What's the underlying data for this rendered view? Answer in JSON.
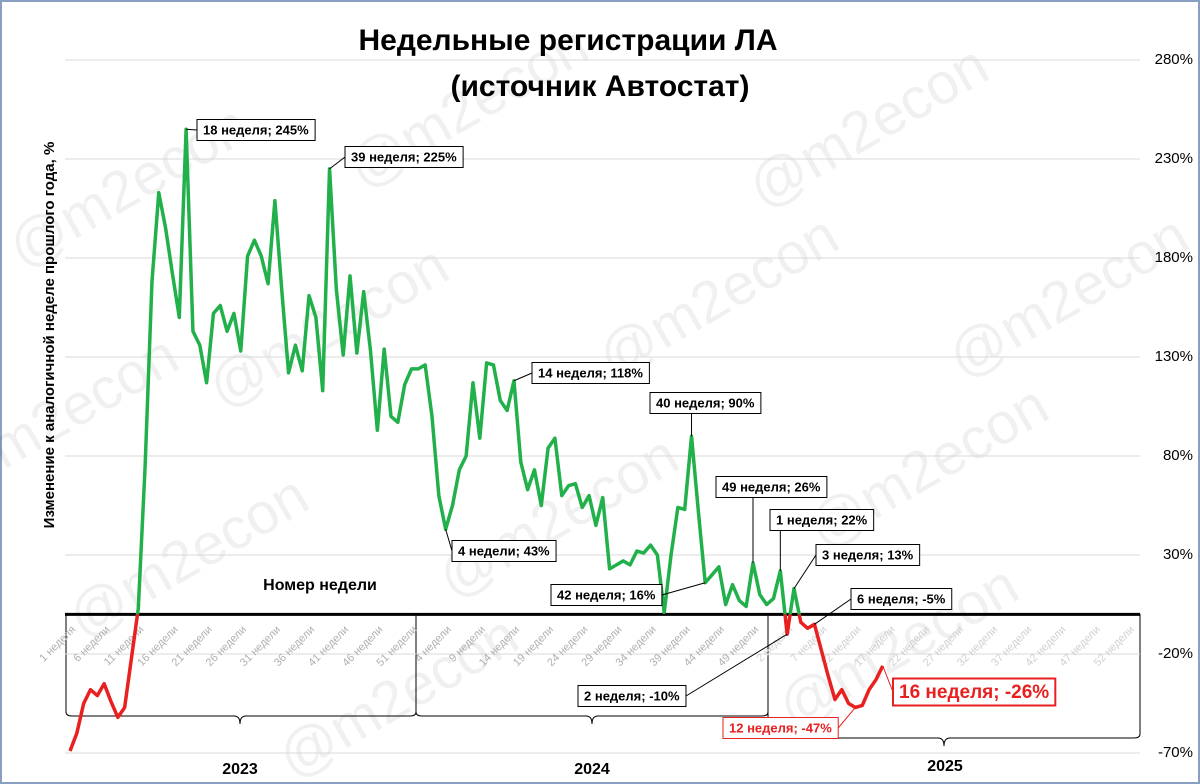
{
  "chart_data": {
    "type": "line",
    "title": [
      "Недельные регистрации ЛА",
      "(источник Автостат)"
    ],
    "y_label": "Изменение к аналогичной неделе прошлого года, %",
    "x_label": "Номер недели",
    "watermark": "@m2econ",
    "year_labels": [
      "2023",
      "2024",
      "2025"
    ],
    "color": "#22b04b",
    "negative_color": "#e8201f",
    "grid": true,
    "ylim": [
      -70,
      280
    ],
    "yticks": [
      {
        "value": -70,
        "label": "-70%"
      },
      {
        "value": -20,
        "label": "-20%"
      },
      {
        "value": 30,
        "label": "30%"
      },
      {
        "value": 80,
        "label": "80%"
      },
      {
        "value": 130,
        "label": "130%"
      },
      {
        "value": 180,
        "label": "180%"
      },
      {
        "value": 230,
        "label": "230%"
      },
      {
        "value": 280,
        "label": "280%"
      }
    ],
    "categories": [
      "1 неделя",
      null,
      null,
      null,
      null,
      "6 недели",
      null,
      null,
      null,
      null,
      "11 недели",
      null,
      null,
      null,
      null,
      "16 недели",
      null,
      null,
      null,
      null,
      "21 недели",
      null,
      null,
      null,
      null,
      "26 недели",
      null,
      null,
      null,
      null,
      "31 недели",
      null,
      null,
      null,
      null,
      "36 недели",
      null,
      null,
      null,
      null,
      "41 недели",
      null,
      null,
      null,
      null,
      "46 недели",
      null,
      null,
      null,
      null,
      "51 недели",
      null,
      null,
      null,
      null,
      "4 недели",
      null,
      null,
      null,
      null,
      "9 недели",
      null,
      null,
      null,
      null,
      "14 недели",
      null,
      null,
      null,
      null,
      "19 недели",
      null,
      null,
      null,
      null,
      "24 недели",
      null,
      null,
      null,
      null,
      "29 недели",
      null,
      null,
      null,
      null,
      "34 недели",
      null,
      null,
      null,
      null,
      "39 недели",
      null,
      null,
      null,
      null,
      "44 недели",
      null,
      null,
      null,
      null,
      "49 недели",
      null,
      null,
      null,
      null,
      "2 недели",
      null,
      null,
      null,
      null,
      "7 недели",
      null,
      null,
      null,
      null,
      "12 недели",
      null,
      null,
      null,
      null,
      "17 недели",
      null,
      null,
      null,
      null,
      "22 недели",
      null,
      null,
      null,
      null,
      "27 недели",
      null,
      null,
      null,
      null,
      "32 недели",
      null,
      null,
      null,
      null,
      "37 недели",
      null,
      null,
      null,
      null,
      "42 недели",
      null,
      null,
      null,
      null,
      "47 недели",
      null,
      null,
      null,
      null,
      "52 недели"
    ],
    "values": [
      -69,
      -60,
      -45,
      -38,
      -41,
      -35,
      -44,
      -52,
      -47,
      -22,
      3,
      75,
      168,
      213,
      195,
      172,
      150,
      245,
      143,
      136,
      117,
      152,
      156,
      143,
      152,
      133,
      181,
      189,
      181,
      167,
      209,
      164,
      122,
      136,
      123,
      161,
      150,
      113,
      225,
      164,
      131,
      171,
      132,
      163,
      133,
      93,
      134,
      100,
      97,
      116,
      124,
      124,
      126,
      100,
      60,
      43,
      55,
      73,
      80,
      117,
      89,
      127,
      126,
      108,
      103,
      118,
      77,
      63,
      73,
      55,
      84,
      89,
      60,
      65,
      66,
      54,
      60,
      45,
      59,
      23,
      25,
      27,
      25,
      32,
      31,
      35,
      30,
      1,
      30,
      54,
      53,
      90,
      52,
      16,
      20,
      24,
      5,
      15,
      7,
      4,
      26,
      10,
      5,
      8,
      22,
      -10,
      13,
      -4,
      -7,
      -5,
      -18,
      -31,
      -43,
      -38,
      -45,
      -47,
      -46,
      -38,
      -33,
      -26,
      null,
      null,
      null,
      null,
      null,
      null,
      null,
      null,
      null,
      null,
      null,
      null,
      null,
      null,
      null,
      null,
      null,
      null,
      null,
      null,
      null,
      null,
      null,
      null,
      null,
      null,
      null,
      null,
      null,
      null,
      null,
      null,
      null,
      null,
      null,
      null
    ],
    "annotations": [
      "18 неделя; 245%",
      "39 неделя; 225%",
      "14 неделя; 118%",
      "40 неделя; 90%",
      "4 недели; 43%",
      "49 неделя; 26%",
      "1 неделя; 22%",
      "3 неделя; 13%",
      "42 неделя; 16%",
      "6 неделя; -5%",
      "2 неделя; -10%",
      "12 неделя; -47%",
      "16 неделя; -26%"
    ]
  }
}
